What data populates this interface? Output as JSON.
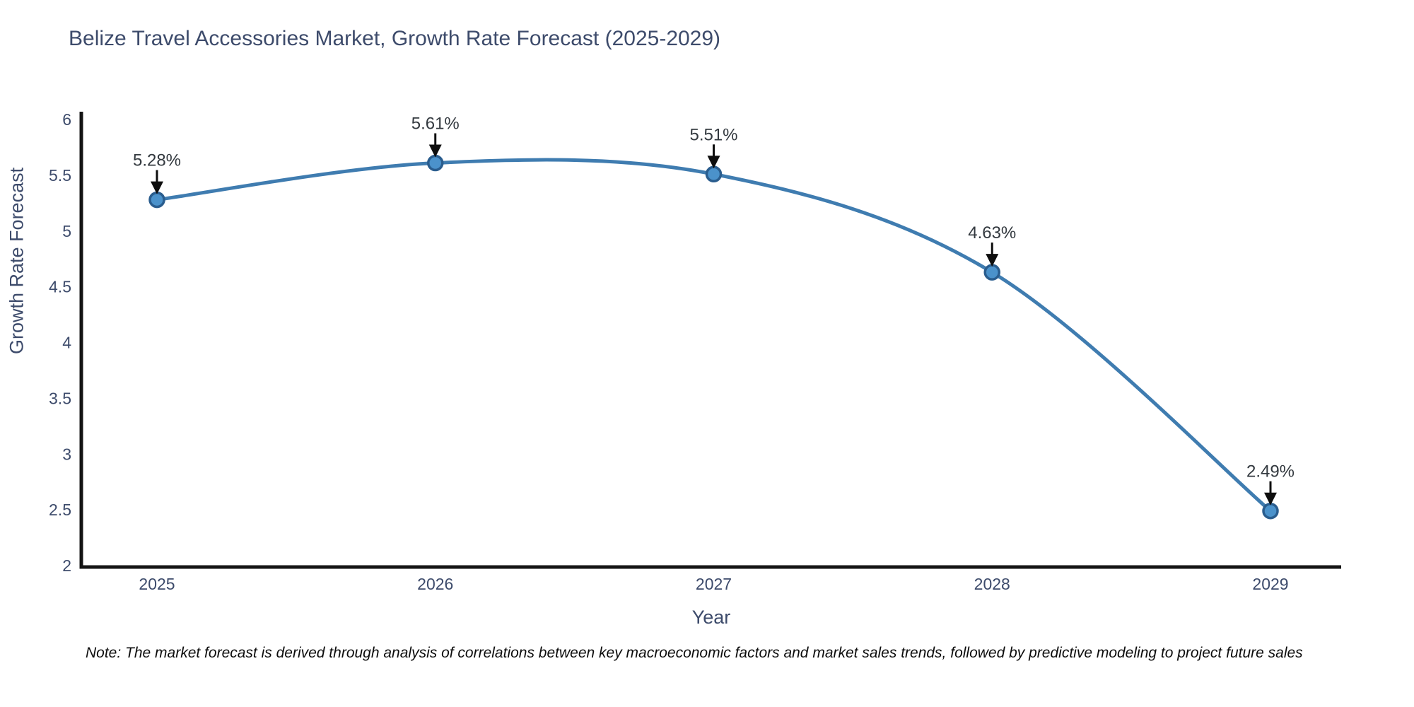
{
  "title": {
    "text": "Belize Travel Accessories Market, Growth Rate Forecast (2025-2029)",
    "color": "#3d4b6b"
  },
  "note": {
    "text": "Note: The market forecast is derived through analysis of correlations between key macroeconomic factors and market sales trends, followed by predictive modeling to project future sales"
  },
  "chart_data": {
    "type": "line",
    "line_shape": "spline",
    "title": "Belize Travel Accessories Market, Growth Rate Forecast (2025-2029)",
    "xlabel": "Year",
    "ylabel": "Growth Rate Forecast",
    "x": [
      2025,
      2026,
      2027,
      2028,
      2029
    ],
    "series": [
      {
        "name": "Growth Rate Forecast",
        "values": [
          5.28,
          5.61,
          5.51,
          4.63,
          2.49
        ]
      }
    ],
    "point_labels": [
      "5.28%",
      "5.61%",
      "5.51%",
      "4.63%",
      "2.49%"
    ],
    "annotation_style": "black down-arrow from label to marker",
    "xticks": [
      "2025",
      "2026",
      "2027",
      "2028",
      "2029"
    ],
    "yticks": [
      "2",
      "2.5",
      "3",
      "3.5",
      "4",
      "4.5",
      "5",
      "5.5",
      "6"
    ],
    "ytick_values": [
      2,
      2.5,
      3,
      3.5,
      4,
      4.5,
      5,
      5.5,
      6
    ],
    "xlim": [
      2024.73,
      2029.25
    ],
    "ylim": [
      2,
      6
    ],
    "grid": false,
    "legend": "none",
    "colors": {
      "line": "#3f7cb0",
      "marker_fill": "#4b92cb",
      "marker_edge": "#2a5d8e",
      "axis_spine": "#141414",
      "tick_text": "#3d4b6b",
      "annotation_text": "#33393f",
      "arrow": "#0e0e0e",
      "background": "#ffffff"
    }
  }
}
